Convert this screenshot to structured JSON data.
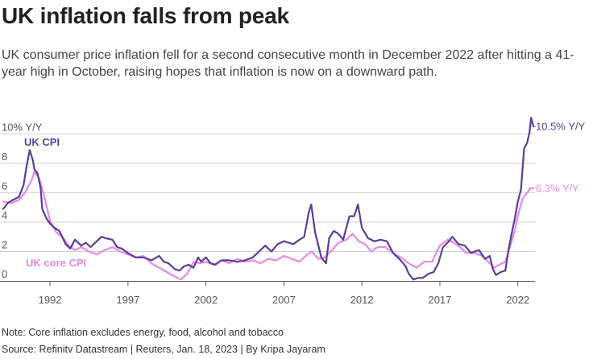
{
  "header": {
    "title": "UK inflation falls from peak",
    "subtitle": "UK consumer price inflation fell for a second consecutive month in December 2022 after hitting a 41-year high in October, raising hopes that inflation is now on a downward path."
  },
  "footer": {
    "note": "Note: Core inflation excludes energy, food, alcohol and tobacco",
    "source": "Source: Refinitv Datastream | Reuters, Jan. 18, 2023 | By Kripa Jayaram"
  },
  "colors": {
    "cpi": "#5b3e96",
    "core": "#e58ae6",
    "grid": "#d0d0d0",
    "axis": "#555555",
    "text": "#555555"
  },
  "chart_data": {
    "type": "line",
    "title": "UK inflation falls from peak",
    "xlabel": "",
    "ylabel": "% Y/Y",
    "xlim": [
      1989,
      2023.1
    ],
    "ylim": [
      0,
      11
    ],
    "y_ticks": [
      {
        "value": 0,
        "label": "0"
      },
      {
        "value": 2,
        "label": "2"
      },
      {
        "value": 4,
        "label": "4"
      },
      {
        "value": 6,
        "label": "6"
      },
      {
        "value": 8,
        "label": "8"
      },
      {
        "value": 10,
        "label": "10% Y/Y"
      }
    ],
    "x_ticks": [
      {
        "value": 1992,
        "label": "1992"
      },
      {
        "value": 1997,
        "label": "1997"
      },
      {
        "value": 2002,
        "label": "2002"
      },
      {
        "value": 2007,
        "label": "2007"
      },
      {
        "value": 2012,
        "label": "2012"
      },
      {
        "value": 2017,
        "label": "2017"
      },
      {
        "value": 2022,
        "label": "2022"
      }
    ],
    "series": [
      {
        "name": "UK CPI",
        "color": "#5b3e96",
        "end_label": "10.5% Y/Y",
        "x": [
          1989.0,
          1989.3,
          1989.6,
          1990.0,
          1990.3,
          1990.5,
          1990.7,
          1990.9,
          1991.0,
          1991.2,
          1991.4,
          1991.5,
          1991.8,
          1992.0,
          1992.3,
          1992.6,
          1993.0,
          1993.3,
          1993.6,
          1994.0,
          1994.3,
          1994.6,
          1995.0,
          1995.3,
          1995.6,
          1996.0,
          1996.3,
          1996.6,
          1997.0,
          1997.5,
          1998.0,
          1998.5,
          1999.0,
          1999.3,
          1999.6,
          2000.0,
          2000.3,
          2000.6,
          2000.9,
          2001.2,
          2001.5,
          2001.7,
          2002.0,
          2002.3,
          2002.6,
          2003.0,
          2003.5,
          2004.0,
          2004.5,
          2005.0,
          2005.4,
          2005.8,
          2006.2,
          2006.6,
          2007.0,
          2007.3,
          2007.6,
          2008.0,
          2008.3,
          2008.6,
          2008.75,
          2009.0,
          2009.4,
          2009.7,
          2009.9,
          2010.2,
          2010.5,
          2010.8,
          2011.2,
          2011.5,
          2011.75,
          2012.0,
          2012.4,
          2012.8,
          2013.2,
          2013.6,
          2014.0,
          2014.4,
          2014.8,
          2015.0,
          2015.3,
          2015.6,
          2015.9,
          2016.3,
          2016.6,
          2016.9,
          2017.2,
          2017.5,
          2017.8,
          2018.2,
          2018.6,
          2019.0,
          2019.5,
          2019.9,
          2020.2,
          2020.4,
          2020.6,
          2020.9,
          2021.2,
          2021.4,
          2021.6,
          2021.8,
          2022.0,
          2022.2,
          2022.4,
          2022.6,
          2022.75,
          2022.85,
          2023.0
        ],
        "values": [
          4.9,
          5.3,
          5.5,
          5.7,
          6.5,
          7.8,
          8.9,
          8.2,
          7.6,
          7.3,
          6.3,
          4.9,
          4.2,
          3.9,
          3.6,
          3.4,
          2.5,
          2.2,
          2.8,
          2.4,
          2.6,
          2.3,
          2.7,
          3.0,
          2.9,
          2.8,
          2.3,
          2.2,
          1.9,
          1.6,
          1.6,
          1.4,
          1.7,
          1.3,
          1.2,
          0.8,
          0.7,
          1.0,
          1.1,
          0.9,
          1.6,
          1.3,
          1.6,
          1.2,
          1.1,
          1.4,
          1.4,
          1.3,
          1.4,
          1.6,
          2.0,
          2.4,
          2.0,
          2.5,
          2.7,
          2.6,
          2.5,
          2.8,
          3.0,
          4.7,
          5.2,
          3.3,
          1.6,
          1.2,
          2.9,
          3.4,
          3.2,
          2.8,
          4.4,
          4.4,
          5.2,
          3.6,
          2.9,
          2.7,
          2.8,
          2.7,
          1.9,
          1.5,
          1.0,
          0.5,
          0.1,
          0.2,
          0.2,
          0.5,
          0.6,
          1.2,
          2.3,
          2.6,
          3.0,
          2.5,
          2.4,
          1.9,
          2.1,
          1.5,
          1.7,
          0.8,
          0.4,
          0.6,
          0.7,
          2.1,
          3.2,
          4.2,
          5.4,
          6.2,
          9.0,
          9.4,
          10.1,
          11.1,
          10.5
        ]
      },
      {
        "name": "UK core CPI",
        "color": "#e58ae6",
        "end_label": "6.3% Y/Y",
        "x": [
          1989.0,
          1989.5,
          1990.0,
          1990.4,
          1990.8,
          1991.0,
          1991.3,
          1991.6,
          1992.0,
          1992.4,
          1992.8,
          1993.2,
          1993.6,
          1994.0,
          1994.5,
          1995.0,
          1995.5,
          1996.0,
          1996.5,
          1997.0,
          1997.5,
          1998.0,
          1998.5,
          1999.0,
          1999.5,
          2000.0,
          2000.4,
          2000.8,
          2001.2,
          2001.6,
          2002.0,
          2002.5,
          2003.0,
          2003.5,
          2004.0,
          2004.5,
          2005.0,
          2005.5,
          2006.0,
          2006.5,
          2007.0,
          2007.5,
          2008.0,
          2008.5,
          2008.8,
          2009.2,
          2009.6,
          2010.0,
          2010.5,
          2011.0,
          2011.4,
          2011.8,
          2012.2,
          2012.6,
          2013.0,
          2013.5,
          2014.0,
          2014.5,
          2015.0,
          2015.5,
          2016.0,
          2016.5,
          2017.0,
          2017.5,
          2017.9,
          2018.3,
          2018.7,
          2019.2,
          2019.7,
          2020.2,
          2020.5,
          2020.8,
          2021.2,
          2021.5,
          2021.8,
          2022.0,
          2022.3,
          2022.6,
          2022.8,
          2023.0
        ],
        "values": [
          5.4,
          5.3,
          5.5,
          6.0,
          6.8,
          7.4,
          7.0,
          5.9,
          4.1,
          3.3,
          3.0,
          2.4,
          2.1,
          2.3,
          2.0,
          1.8,
          2.1,
          2.3,
          2.0,
          1.8,
          1.6,
          1.7,
          1.2,
          0.9,
          0.6,
          0.3,
          0.1,
          0.5,
          1.3,
          1.2,
          1.3,
          1.1,
          1.4,
          1.2,
          1.5,
          1.3,
          1.4,
          1.2,
          1.5,
          1.4,
          1.7,
          1.5,
          1.3,
          1.8,
          2.0,
          1.5,
          1.6,
          2.0,
          2.6,
          2.8,
          3.2,
          2.7,
          2.5,
          2.0,
          2.3,
          2.3,
          1.9,
          1.6,
          1.2,
          0.9,
          1.3,
          1.3,
          2.4,
          2.8,
          2.6,
          2.3,
          1.9,
          1.9,
          1.7,
          1.2,
          0.9,
          1.1,
          1.3,
          2.3,
          3.4,
          4.4,
          5.6,
          6.0,
          6.3,
          6.3
        ]
      }
    ],
    "annotations": [
      {
        "text": "UK CPI",
        "series": "UK CPI"
      },
      {
        "text": "UK core CPI",
        "series": "UK core CPI"
      }
    ]
  }
}
